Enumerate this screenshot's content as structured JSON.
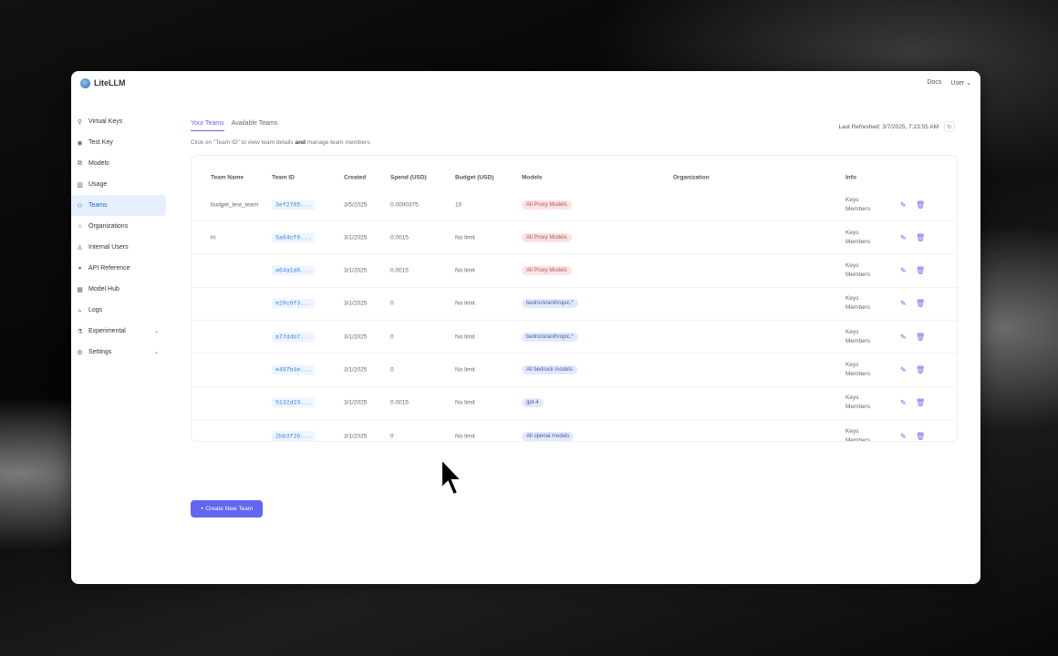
{
  "app": {
    "name": "LiteLLM",
    "docs": "Docs",
    "user": "User"
  },
  "sidebar": {
    "items": [
      {
        "label": "Virtual Keys",
        "icon": "key-icon",
        "glyph": "⚲"
      },
      {
        "label": "Test Key",
        "icon": "play-circle-icon",
        "glyph": "◉"
      },
      {
        "label": "Models",
        "icon": "block-icon",
        "glyph": "⧉"
      },
      {
        "label": "Usage",
        "icon": "bar-chart-icon",
        "glyph": "▥"
      },
      {
        "label": "Teams",
        "icon": "team-icon",
        "glyph": "⚇",
        "active": true
      },
      {
        "label": "Organizations",
        "icon": "bank-icon",
        "glyph": "⌂"
      },
      {
        "label": "Internal Users",
        "icon": "user-icon",
        "glyph": "♙"
      },
      {
        "label": "API Reference",
        "icon": "link-icon",
        "glyph": "⚭"
      },
      {
        "label": "Model Hub",
        "icon": "apps-icon",
        "glyph": "▦"
      },
      {
        "label": "Logs",
        "icon": "line-chart-icon",
        "glyph": "⦣"
      },
      {
        "label": "Experimental",
        "icon": "experiment-icon",
        "glyph": "⚗",
        "expand": true
      },
      {
        "label": "Settings",
        "icon": "settings-icon",
        "glyph": "⚙",
        "expand": true
      }
    ]
  },
  "tabs": [
    {
      "label": "Your Teams",
      "active": true
    },
    {
      "label": "Available Teams"
    }
  ],
  "hint": {
    "pre": "Click on \"Team ID\" to view team details",
    "bold": "and",
    "post": "manage team members."
  },
  "refresh": {
    "label": "Last Refreshed: 3/7/2025, 7:23:55 AM"
  },
  "table": {
    "headers": [
      "Team Name",
      "Team ID",
      "Created",
      "Spend (USD)",
      "Budget (USD)",
      "Models",
      "Organization",
      "Info"
    ],
    "rows": [
      {
        "name": "budget_test_team",
        "id": "3ef2785...",
        "created": "3/5/2025",
        "spend": "0.0000375",
        "budget": "10",
        "model": "All Proxy Models",
        "model_color": "red",
        "org": "",
        "keys": "Keys",
        "members": "Members"
      },
      {
        "name": "hi",
        "id": "5a64cf0...",
        "created": "3/1/2025",
        "spend": "0.0015",
        "budget": "No limit",
        "model": "All Proxy Models",
        "model_color": "red",
        "org": "",
        "keys": "Keys",
        "members": "Members"
      },
      {
        "name": "",
        "id": "a64a1d6...",
        "created": "3/1/2025",
        "spend": "0.0015",
        "budget": "No limit",
        "model": "All Proxy Models",
        "model_color": "red",
        "org": "",
        "keys": "Keys",
        "members": "Members"
      },
      {
        "name": "",
        "id": "e29c6f3...",
        "created": "3/1/2025",
        "spend": "0",
        "budget": "No limit",
        "model": "bedrock/anthropic.*",
        "model_color": "blue",
        "org": "",
        "keys": "Keys",
        "members": "Members"
      },
      {
        "name": "",
        "id": "a77d4b7...",
        "created": "3/1/2025",
        "spend": "0",
        "budget": "No limit",
        "model": "bedrock/anthropic.*",
        "model_color": "blue",
        "org": "",
        "keys": "Keys",
        "members": "Members"
      },
      {
        "name": "",
        "id": "e497b4e...",
        "created": "3/1/2025",
        "spend": "0",
        "budget": "No limit",
        "model": "All bedrock models",
        "model_color": "blue",
        "org": "",
        "keys": "Keys",
        "members": "Members"
      },
      {
        "name": "",
        "id": "5132d23...",
        "created": "3/1/2025",
        "spend": "0.0015",
        "budget": "No limit",
        "model": "gpt-4",
        "model_color": "blue",
        "org": "",
        "keys": "Keys",
        "members": "Members"
      },
      {
        "name": "",
        "id": "2bb3f2b...",
        "created": "3/1/2025",
        "spend": "0",
        "budget": "No limit",
        "model": "All openai models",
        "model_color": "blue",
        "org": "",
        "keys": "Keys",
        "members": "Members"
      }
    ]
  },
  "create_button": "+ Create New Team",
  "colors": {
    "accent": "#6366f1",
    "active_bg": "#e6f0fd",
    "badge_red": "#fde2e2",
    "badge_blue": "#e0eaff"
  }
}
